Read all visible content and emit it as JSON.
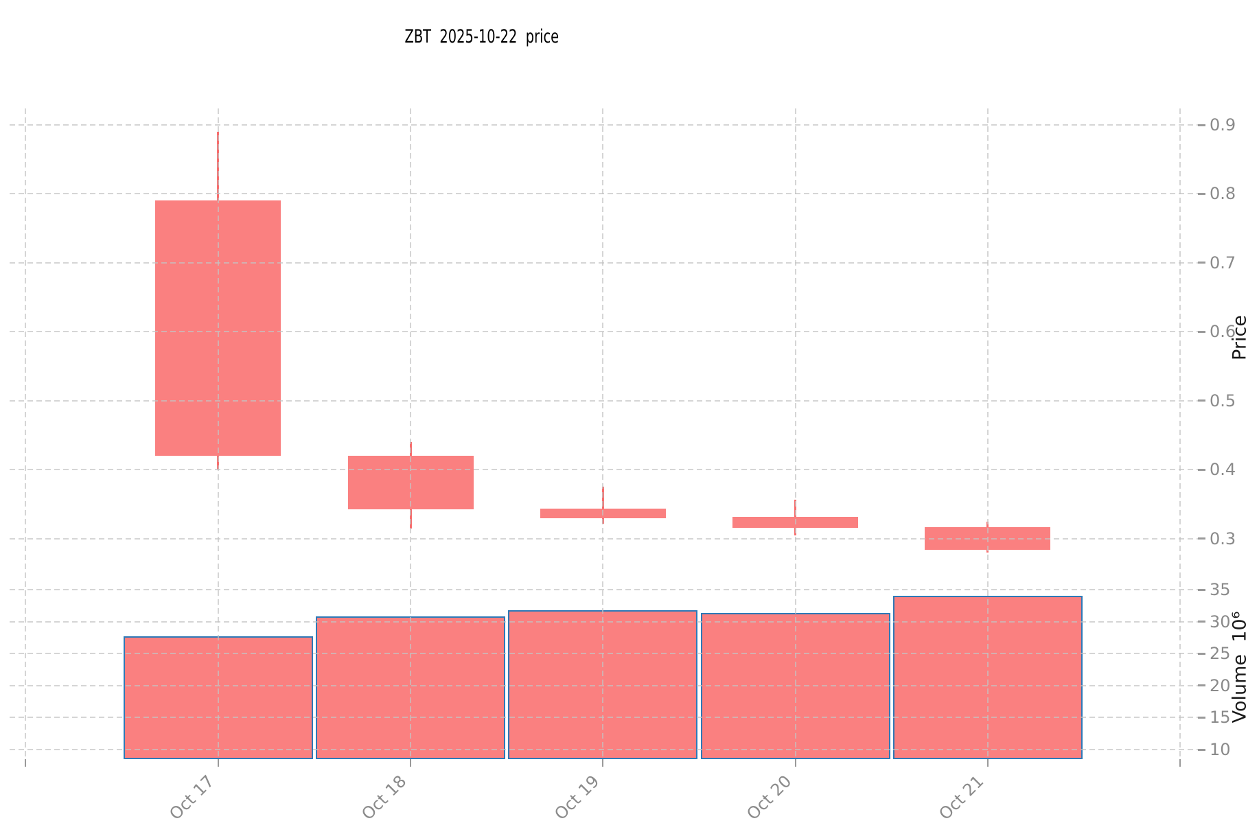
{
  "title": "ZBT  2025-10-22  price",
  "y_axis": {
    "price_label": "Price",
    "volume_label": "Volume  10⁶"
  },
  "chart_data": {
    "type": "candlestick_with_volume",
    "title": "ZBT  2025-10-22  price",
    "x": [
      "Oct 17",
      "Oct 18",
      "Oct 19",
      "Oct 20",
      "Oct 21"
    ],
    "x_slot_labels": [
      "",
      "Oct 17",
      "Oct 18",
      "Oct 19",
      "Oct 20",
      "Oct 21",
      ""
    ],
    "candles": [
      {
        "date": "Oct 17",
        "open": 0.79,
        "high": 0.89,
        "low": 0.4,
        "close": 0.42,
        "direction": "down"
      },
      {
        "date": "Oct 18",
        "open": 0.42,
        "high": 0.44,
        "low": 0.315,
        "close": 0.343,
        "direction": "down"
      },
      {
        "date": "Oct 19",
        "open": 0.344,
        "high": 0.375,
        "low": 0.322,
        "close": 0.33,
        "direction": "down"
      },
      {
        "date": "Oct 20",
        "open": 0.332,
        "high": 0.356,
        "low": 0.305,
        "close": 0.3155,
        "direction": "down"
      },
      {
        "date": "Oct 21",
        "open": 0.3165,
        "high": 0.3245,
        "low": 0.28,
        "close": 0.284,
        "direction": "down"
      }
    ],
    "volume_millions": [
      27.7,
      30.8,
      31.8,
      31.4,
      34.0
    ],
    "price_axis_ticks": [
      0.9,
      0.8,
      0.7,
      0.6,
      0.5,
      0.4,
      0.3
    ],
    "volume_axis_ticks": [
      35,
      30,
      25,
      20,
      15,
      10
    ],
    "price_ylabel": "Price",
    "volume_ylabel": "Volume  10⁶",
    "grid": "dashed",
    "legend": "none",
    "colors": {
      "candle_fill": "#fa8080",
      "candle_wick": "#f86e6e",
      "volume_fill": "#fa8080",
      "volume_edge": "#2e79b7",
      "grid": "#d5d5d5",
      "tick_label": "#8a8a8a",
      "axis_label": "#1a1a1a",
      "title": "#000000"
    }
  }
}
